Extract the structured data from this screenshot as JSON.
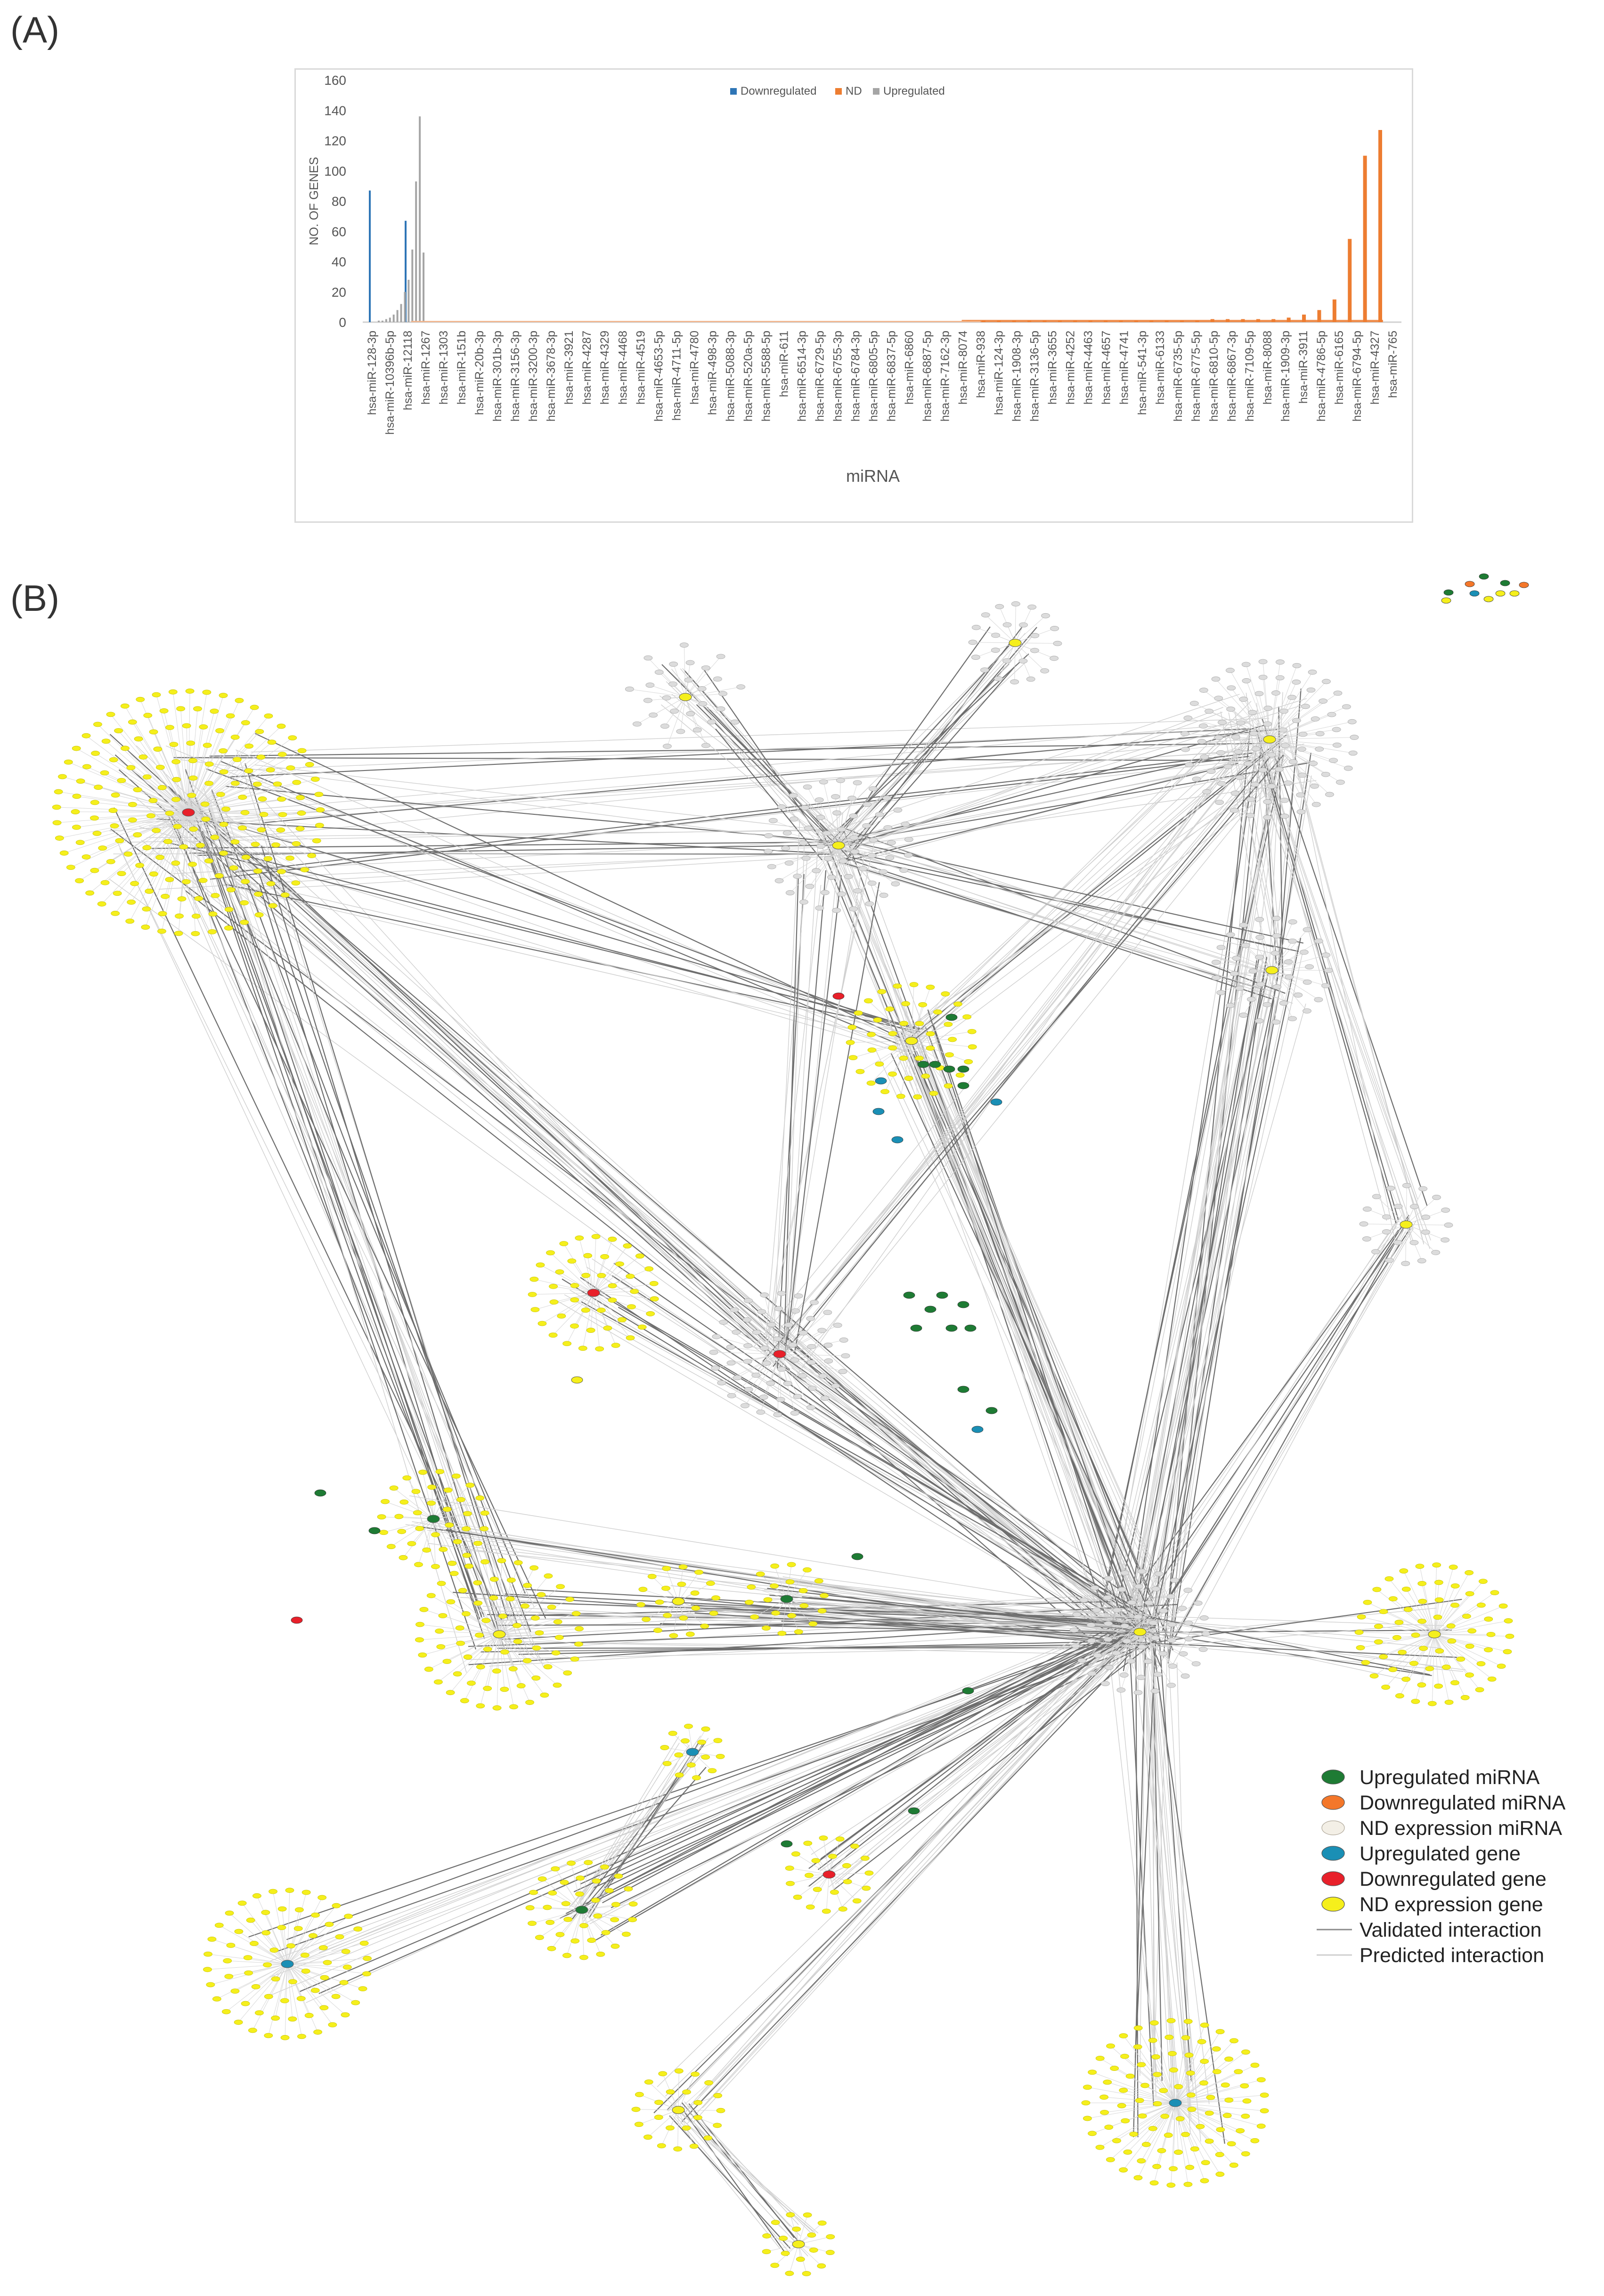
{
  "panels": {
    "a": "(A)",
    "b": "(B)"
  },
  "chart_data": {
    "type": "bar",
    "xlabel": "miRNA",
    "ylabel": "NO. OF GENES",
    "ylim": [
      0,
      160
    ],
    "yticks": [
      0,
      20,
      40,
      60,
      80,
      100,
      120,
      140,
      160
    ],
    "grid": false,
    "legend_position": "top-center",
    "tick_labels": [
      "hsa-miR-128-3p",
      "hsa-miR-10396b-5p",
      "hsa-miR-12118",
      "hsa-miR-1267",
      "hsa-miR-1303",
      "hsa-miR-151b",
      "hsa-miR-20b-3p",
      "hsa-miR-301b-3p",
      "hsa-miR-3156-3p",
      "hsa-miR-3200-3p",
      "hsa-miR-3678-3p",
      "hsa-miR-3921",
      "hsa-miR-4287",
      "hsa-miR-4329",
      "hsa-miR-4468",
      "hsa-miR-4519",
      "hsa-miR-4653-5p",
      "hsa-miR-4711-5p",
      "hsa-miR-4780",
      "hsa-miR-498-3p",
      "hsa-miR-5088-3p",
      "hsa-miR-520a-5p",
      "hsa-miR-5588-5p",
      "hsa-miR-611",
      "hsa-miR-6514-3p",
      "hsa-miR-6729-5p",
      "hsa-miR-6755-3p",
      "hsa-miR-6784-3p",
      "hsa-miR-6805-5p",
      "hsa-miR-6837-5p",
      "hsa-miR-6860",
      "hsa-miR-6887-5p",
      "hsa-miR-7162-3p",
      "hsa-miR-8074",
      "hsa-miR-938",
      "hsa-miR-124-3p",
      "hsa-miR-1908-3p",
      "hsa-miR-3136-5p",
      "hsa-miR-3655",
      "hsa-miR-4252",
      "hsa-miR-4463",
      "hsa-miR-4657",
      "hsa-miR-4741",
      "hsa-miR-541-3p",
      "hsa-miR-6133",
      "hsa-miR-6735-5p",
      "hsa-miR-6775-5p",
      "hsa-miR-6810-5p",
      "hsa-miR-6867-3p",
      "hsa-miR-7109-5p",
      "hsa-miR-8088",
      "hsa-miR-1909-3p",
      "hsa-miR-3911",
      "hsa-miR-4786-5p",
      "hsa-miR-6165",
      "hsa-miR-6794-5p",
      "hsa-miR-4327",
      "hsa-miR-765"
    ],
    "series": [
      {
        "name": "Downregulated",
        "color": "#2e75b6",
        "range_x": [
          0,
          2
        ],
        "values": [
          87,
          67
        ]
      },
      {
        "name": "ND",
        "color": "#ed7d31",
        "range_x": [
          34,
          57
        ],
        "values": [
          1,
          1,
          1,
          1,
          1,
          1,
          1,
          1,
          1,
          1,
          1,
          1,
          1,
          1,
          1,
          1,
          2,
          2,
          2,
          2,
          2,
          3,
          5,
          8,
          15,
          55,
          110,
          127
        ]
      },
      {
        "name": "Upregulated",
        "color": "#a5a5a5",
        "range_x": [
          0.5,
          3
        ],
        "values": [
          1,
          1,
          2,
          3,
          5,
          8,
          12,
          20,
          28,
          48,
          93,
          136,
          46
        ]
      }
    ]
  },
  "network": {
    "legend": [
      {
        "label": "Upregulated miRNA",
        "color": "#1e7b34",
        "kind": "node"
      },
      {
        "label": "Downregulated miRNA",
        "color": "#f4772a",
        "kind": "node"
      },
      {
        "label": "ND expression miRNA",
        "color": "#f3efe6",
        "kind": "node"
      },
      {
        "label": "Upregulated gene",
        "color": "#1a8fb5",
        "kind": "node"
      },
      {
        "label": "Downregulated gene",
        "color": "#e8202a",
        "kind": "node"
      },
      {
        "label": "ND expression gene",
        "color": "#f5ef1c",
        "kind": "node"
      },
      {
        "label": "Validated interaction",
        "color": "#8c8c8c",
        "kind": "line"
      },
      {
        "label": "Predicted interaction",
        "color": "#cfcfcf",
        "kind": "line"
      }
    ]
  }
}
